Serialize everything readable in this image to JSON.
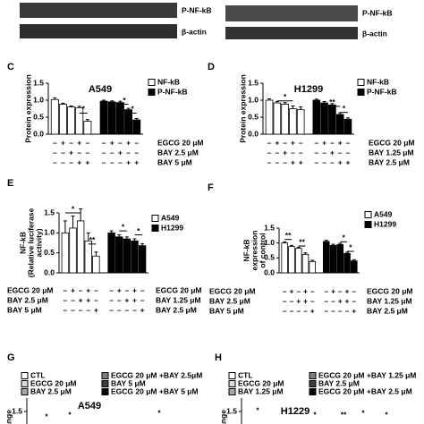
{
  "blots": [
    {
      "labels": [
        "P-NF-kB",
        "β-actin"
      ]
    },
    {
      "labels": [
        "P-NF-kB",
        "β-actin"
      ]
    }
  ],
  "chart_data": [
    {
      "type": "bar",
      "letter": "C",
      "title": "A549",
      "ylabel": [
        "Protein expression"
      ],
      "ylim": [
        0,
        1.5
      ],
      "yticks": [
        {
          "value": 0,
          "label": "0.0"
        },
        {
          "value": 0.5,
          "label": "0.5"
        },
        {
          "value": 1,
          "label": "1.0"
        },
        {
          "value": 1.5,
          "label": "1.5"
        }
      ],
      "series": [
        {
          "name": "NF-kB",
          "color": "#ffffff",
          "values": [
            1.02,
            0.88,
            0.8,
            0.78,
            0.38
          ],
          "errors": [
            0.05,
            0.03,
            0.03,
            0.04,
            0.05
          ]
        },
        {
          "name": "P-NF-kB",
          "color": "#000000",
          "values": [
            0.97,
            0.95,
            0.93,
            0.72,
            0.42
          ],
          "errors": [
            0.03,
            0.03,
            0.04,
            0.04,
            0.04
          ]
        }
      ],
      "annotations": [
        "*",
        "*",
        "*"
      ],
      "treatments": [
        {
          "label": "EGCG 20 μM",
          "signs": [
            "–",
            "+",
            "–",
            "+",
            "–",
            "–",
            "+",
            "–",
            "+",
            "–"
          ]
        },
        {
          "label": "BAY 2.5 μM",
          "signs": [
            "–",
            "–",
            "+",
            "–",
            "–",
            "–",
            "–",
            "+",
            "–",
            "–"
          ]
        },
        {
          "label": "BAY 5 μM",
          "signs": [
            "–",
            "–",
            "–",
            "+",
            "+",
            "–",
            "–",
            "–",
            "+",
            "+"
          ]
        }
      ]
    },
    {
      "type": "bar",
      "letter": "D",
      "title": "H1299",
      "ylabel": [
        "Protein expression"
      ],
      "ylim": [
        0,
        1.5
      ],
      "yticks": [
        {
          "value": 0,
          "label": "0.0"
        },
        {
          "value": 0.5,
          "label": "0.5"
        },
        {
          "value": 1,
          "label": "1.0"
        },
        {
          "value": 1.5,
          "label": "1.5"
        }
      ],
      "series": [
        {
          "name": "NF-kB",
          "color": "#ffffff",
          "values": [
            1.0,
            0.92,
            0.88,
            0.75,
            0.72
          ],
          "errors": [
            0.04,
            0.04,
            0.05,
            0.08,
            0.08
          ]
        },
        {
          "name": "P-NF-kB",
          "color": "#000000",
          "values": [
            1.0,
            0.92,
            0.86,
            0.58,
            0.44
          ],
          "errors": [
            0.03,
            0.04,
            0.04,
            0.05,
            0.04
          ]
        }
      ],
      "annotations": [
        "*",
        "**",
        "*"
      ],
      "treatments": [
        {
          "label": "EGCG 20 μM",
          "signs": [
            "–",
            "+",
            "–",
            "+",
            "–",
            "–",
            "+",
            "–",
            "+",
            "–"
          ]
        },
        {
          "label": "BAY 1.25 μM",
          "signs": [
            "–",
            "–",
            "+",
            "–",
            "–",
            "–",
            "–",
            "+",
            "–",
            "–"
          ]
        },
        {
          "label": "BAY 2.5 μM",
          "signs": [
            "–",
            "–",
            "–",
            "+",
            "+",
            "–",
            "–",
            "–",
            "+",
            "+"
          ]
        }
      ]
    },
    {
      "type": "bar",
      "letter": "E",
      "ylabel": [
        "NF-kB",
        "(Relative luciferase",
        "activity)"
      ],
      "ylim": [
        0,
        1.5
      ],
      "yticks": [
        {
          "value": 0,
          "label": "0.0"
        },
        {
          "value": 0.5,
          "label": "0.5"
        },
        {
          "value": 1,
          "label": "1.0"
        },
        {
          "value": 1.5,
          "label": "1.5"
        }
      ],
      "series": [
        {
          "name": "A549",
          "color": "#ffffff",
          "values": [
            1.0,
            1.12,
            1.3,
            0.8,
            0.42
          ],
          "errors": [
            0.3,
            0.3,
            0.3,
            0.2,
            0.1
          ]
        },
        {
          "name": "H1299",
          "color": "#000000",
          "values": [
            1.0,
            0.9,
            0.85,
            0.8,
            0.68
          ],
          "errors": [
            0.05,
            0.05,
            0.05,
            0.05,
            0.05
          ]
        }
      ],
      "annotations": [
        "*",
        "**",
        "*",
        "*"
      ],
      "treatments_left": [
        {
          "label": "EGCG 20 μM",
          "signs": [
            "–",
            "+",
            "–",
            "+",
            "–"
          ]
        },
        {
          "label": "BAY 2.5 μM",
          "signs": [
            "–",
            "–",
            "+",
            "+",
            "–"
          ]
        },
        {
          "label": "BAY 5 μM",
          "signs": [
            "–",
            "–",
            "–",
            "–",
            "+"
          ]
        }
      ],
      "treatments_right": [
        {
          "label": "EGCG 20 μM",
          "signs": [
            "–",
            "+",
            "–",
            "+",
            "–"
          ]
        },
        {
          "label": "BAY 1.25 μM",
          "signs": [
            "–",
            "–",
            "+",
            "+",
            "–"
          ]
        },
        {
          "label": "BAY 2.5 μM",
          "signs": [
            "–",
            "–",
            "–",
            "–",
            "+"
          ]
        }
      ]
    },
    {
      "type": "bar",
      "letter": "F",
      "ylabel": [
        "NF-kB",
        "expression",
        "of control"
      ],
      "ylim": [
        0,
        1.5
      ],
      "yticks": [
        {
          "value": 0,
          "label": "0.0"
        },
        {
          "value": 0.5,
          "label": "0.5"
        },
        {
          "value": 1,
          "label": "1.0"
        },
        {
          "value": 1.5,
          "label": "1.5"
        }
      ],
      "series": [
        {
          "name": "A549",
          "color": "#ffffff",
          "values": [
            1.0,
            0.88,
            0.82,
            0.62,
            0.38
          ],
          "errors": [
            0.04,
            0.04,
            0.04,
            0.05,
            0.04
          ]
        },
        {
          "name": "H1299",
          "color": "#000000",
          "values": [
            1.05,
            0.92,
            0.95,
            0.65,
            0.4
          ],
          "errors": [
            0.04,
            0.04,
            0.04,
            0.04,
            0.04
          ]
        }
      ],
      "annotations": [
        "**",
        "**",
        "*",
        "*"
      ],
      "treatments_left": [
        {
          "label": "EGCG 20 μM",
          "signs": [
            "–",
            "+",
            "–",
            "+",
            "–"
          ]
        },
        {
          "label": "BAY 2.5 μM",
          "signs": [
            "–",
            "–",
            "+",
            "+",
            "–"
          ]
        },
        {
          "label": "BAY 5 μM",
          "signs": [
            "–",
            "–",
            "–",
            "–",
            "+"
          ]
        }
      ],
      "treatments_right": [
        {
          "label": "EGCG 20 μM",
          "signs": [
            "–",
            "+",
            "–",
            "+",
            "–"
          ]
        },
        {
          "label": "BAY 1.25 μM",
          "signs": [
            "–",
            "–",
            "+",
            "+",
            "–"
          ]
        },
        {
          "label": "BAY 2.5 μM",
          "signs": [
            "–",
            "–",
            "–",
            "–",
            "+"
          ]
        }
      ]
    },
    {
      "type": "bar",
      "letter": "G",
      "title": "A549",
      "ylabel": [
        "ange"
      ],
      "ylim": [
        0,
        2
      ],
      "yticks": [
        1.5
      ],
      "series": [
        {
          "name": "CTL",
          "color": "#ffffff"
        },
        {
          "name": "EGCG 20 μM",
          "color": "#d9d9d9"
        },
        {
          "name": "BAY 2.5 μM",
          "color": "#a6a6a6"
        },
        {
          "name": "EGCG 20 μM +BAY 2.5μM",
          "color": "#7f7f7f"
        },
        {
          "name": "BAY 5 μM",
          "color": "#404040"
        },
        {
          "name": "EGCG 20 μM +BAY 5 μM",
          "color": "#000000"
        }
      ],
      "annotations": [
        "*",
        "*",
        "*"
      ]
    },
    {
      "type": "bar",
      "letter": "H",
      "title": "H1229",
      "ylabel": [
        "ange"
      ],
      "ylim": [
        0,
        2
      ],
      "yticks": [
        1.5
      ],
      "series": [
        {
          "name": "CTL",
          "color": "#ffffff"
        },
        {
          "name": "EGCG 20 μM",
          "color": "#d9d9d9"
        },
        {
          "name": "BAY 1.25 μM",
          "color": "#a6a6a6"
        },
        {
          "name": "EGCG 20 μM +BAY 1.25 μM",
          "color": "#7f7f7f"
        },
        {
          "name": "BAY 2.5 μM",
          "color": "#404040"
        },
        {
          "name": "EGCG 20 μM +BAY 2.5 μM",
          "color": "#000000"
        }
      ],
      "annotations": [
        "*",
        "*",
        "**",
        "*",
        "*"
      ]
    }
  ]
}
